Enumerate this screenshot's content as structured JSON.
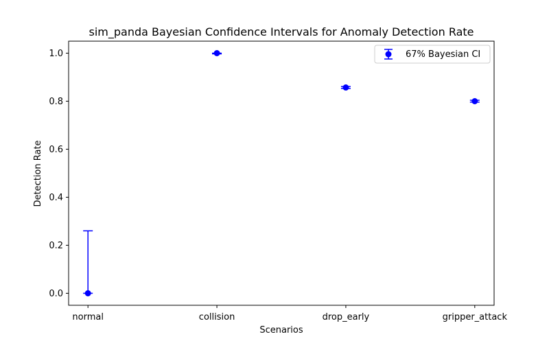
{
  "chart_data": {
    "type": "scatter",
    "title": "sim_panda Bayesian Confidence Intervals for Anomaly Detection Rate",
    "xlabel": "Scenarios",
    "ylabel": "Detection Rate",
    "categories": [
      "normal",
      "collision",
      "drop_early",
      "gripper_attack"
    ],
    "ylim": [
      -0.05,
      1.05
    ],
    "yticks": [
      "0.0",
      "0.2",
      "0.4",
      "0.6",
      "0.8",
      "1.0"
    ],
    "grid": false,
    "legend_position": "top-right",
    "series": [
      {
        "name": "67% Bayesian CI",
        "color": "#0000ff",
        "marker": "circle",
        "values": [
          0.0,
          1.0,
          0.857,
          0.8
        ],
        "ci_lower": [
          0.0,
          0.997,
          0.853,
          0.796
        ],
        "ci_upper": [
          0.26,
          1.0,
          0.861,
          0.804
        ]
      }
    ]
  }
}
